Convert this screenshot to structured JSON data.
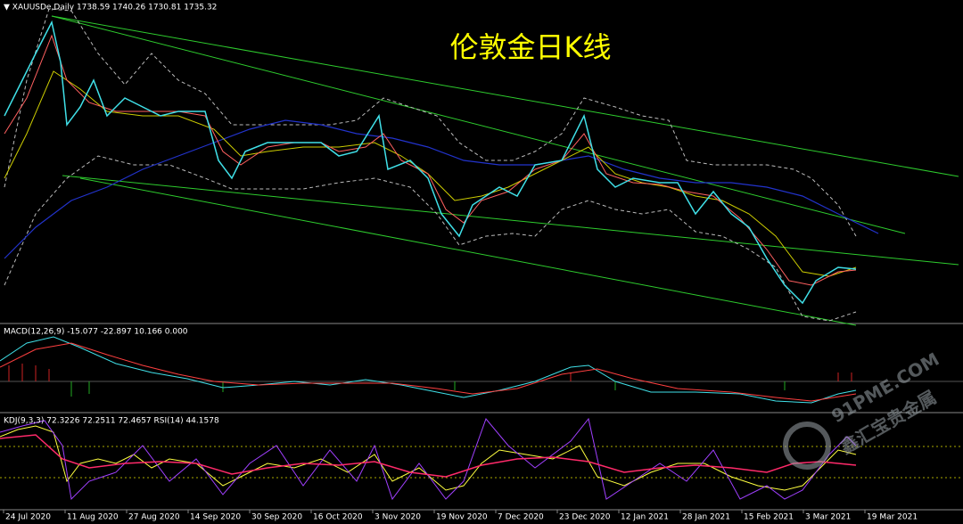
{
  "header": {
    "symbol": "▼ XAUUSDe,Daily  1738.59 1740.26 1730.81 1735.32"
  },
  "title": "伦敦金日K线",
  "macd_label": "MACD(12,26,9) -15.077 -22.897 10.166 0.000",
  "kdj_label": "KDJ(9,3,3) 72.3226 72.2511 72.4657  RSI(14) 44.1578",
  "dates": [
    "24 Jul 2020",
    "11 Aug 2020",
    "27 Aug 2020",
    "14 Sep 2020",
    "30 Sep 2020",
    "16 Oct 2020",
    "3 Nov 2020",
    "19 Nov 2020",
    "7 Dec 2020",
    "23 Dec 2020",
    "12 Jan 2021",
    "28 Jan 2021",
    "15 Feb 2021",
    "3 Mar 2021",
    "19 Mar 2021"
  ],
  "watermark": {
    "site": "91PME.COM",
    "brand": "鑫汇宝贵金属"
  }
}
